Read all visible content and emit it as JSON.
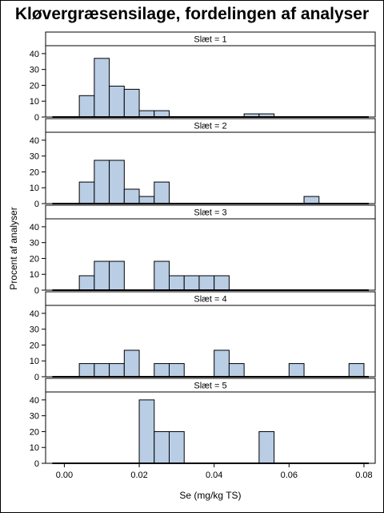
{
  "title": "Kløvergræsensilage, fordelingen af analyser",
  "chart_data": {
    "type": "bar",
    "xlabel": "Se (mg/kg TS)",
    "ylabel": "Procent af analyser",
    "xlim": [
      -0.005,
      0.083
    ],
    "ylim": [
      0,
      45
    ],
    "x_ticks": [
      "0.00",
      "0.02",
      "0.04",
      "0.06",
      "0.08"
    ],
    "y_ticks": [
      "0",
      "10",
      "20",
      "30",
      "40"
    ],
    "bin_width": 0.004,
    "panels": [
      {
        "label": "Slæt = 1",
        "bins": [
          0.006,
          0.01,
          0.014,
          0.018,
          0.022,
          0.026,
          0.05,
          0.054
        ],
        "values": [
          13.5,
          37,
          19.5,
          17.5,
          4,
          4,
          2,
          2
        ]
      },
      {
        "label": "Slæt = 2",
        "bins": [
          0.006,
          0.01,
          0.014,
          0.018,
          0.022,
          0.026,
          0.066
        ],
        "values": [
          13.6,
          27.3,
          27.3,
          9.1,
          4.5,
          13.6,
          4.5
        ]
      },
      {
        "label": "Slæt = 3",
        "bins": [
          0.006,
          0.01,
          0.014,
          0.026,
          0.03,
          0.034,
          0.038,
          0.042
        ],
        "values": [
          9.1,
          18.2,
          18.2,
          18.2,
          9.1,
          9.1,
          9.1,
          9.1
        ]
      },
      {
        "label": "Slæt = 4",
        "bins": [
          0.006,
          0.01,
          0.014,
          0.018,
          0.026,
          0.03,
          0.042,
          0.046,
          0.062,
          0.078
        ],
        "values": [
          8.3,
          8.3,
          8.3,
          16.7,
          8.3,
          8.3,
          16.7,
          8.3,
          8.3,
          8.3
        ]
      },
      {
        "label": "Slæt = 5",
        "bins": [
          0.022,
          0.026,
          0.03,
          0.054
        ],
        "values": [
          40,
          20,
          20,
          20
        ]
      }
    ],
    "bar_fill": "#b9cde5",
    "bar_stroke": "#000000",
    "grid": false
  }
}
